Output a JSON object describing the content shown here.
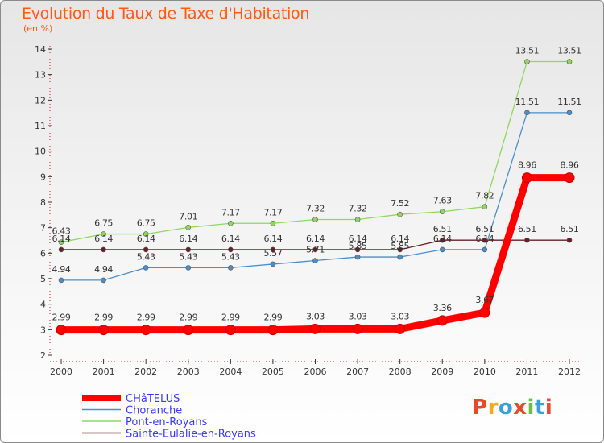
{
  "title": "Evolution du Taux de Taxe d'Habitation",
  "subtitle": "(en %)",
  "logo_text": "Proxiti",
  "chart_data": {
    "type": "line",
    "title": "Evolution du Taux de Taxe d'Habitation",
    "ylabel": "(en %)",
    "xlabel": "",
    "x": [
      "2000",
      "2001",
      "2002",
      "2003",
      "2004",
      "2005",
      "2006",
      "2007",
      "2008",
      "2009",
      "2010",
      "2011",
      "2012"
    ],
    "ylim": [
      2,
      14
    ],
    "yticks": [
      2,
      3,
      4,
      5,
      6,
      7,
      8,
      9,
      10,
      11,
      12,
      13,
      14
    ],
    "grid": false,
    "legend": "bottom-left",
    "series": [
      {
        "name": "Choranche",
        "color": "#4a8fc9",
        "values": [
          4.94,
          4.94,
          5.43,
          5.43,
          5.43,
          5.57,
          5.71,
          5.85,
          5.85,
          6.14,
          6.14,
          11.51,
          11.51
        ],
        "labels": [
          "4.94",
          "4.94",
          "5.43",
          "5.43",
          "5.43",
          "5.57",
          "5.71",
          "5.85",
          "5.85",
          "6.14",
          "6.14",
          "11.51",
          "11.51"
        ]
      },
      {
        "name": "Pont-en-Royans",
        "color": "#8ed85e",
        "values": [
          6.43,
          6.75,
          6.75,
          7.01,
          7.17,
          7.17,
          7.32,
          7.32,
          7.52,
          7.63,
          7.82,
          13.51,
          13.51
        ],
        "labels": [
          "6.43",
          "6.75",
          "6.75",
          "7.01",
          "7.17",
          "7.17",
          "7.32",
          "7.32",
          "7.52",
          "7.63",
          "7.82",
          "13.51",
          "13.51"
        ]
      },
      {
        "name": "Sainte-Eulalie-en-Royans",
        "color": "#6b1e26",
        "values": [
          6.14,
          6.14,
          6.14,
          6.14,
          6.14,
          6.14,
          6.14,
          6.14,
          6.14,
          6.51,
          6.51,
          6.51,
          6.51
        ],
        "labels": [
          "6.14",
          "6.14",
          "6.14",
          "6.14",
          "6.14",
          "6.14",
          "6.14",
          "6.14",
          "6.14",
          "6.51",
          "6.51",
          "6.51",
          "6.51"
        ]
      },
      {
        "name": "CHâTELUS",
        "color": "#ff0000",
        "values": [
          2.99,
          2.99,
          2.99,
          2.99,
          2.99,
          2.99,
          3.03,
          3.03,
          3.03,
          3.36,
          3.67,
          8.96,
          8.96
        ],
        "labels": [
          "2.99",
          "2.99",
          "2.99",
          "2.99",
          "2.99",
          "2.99",
          "3.03",
          "3.03",
          "3.03",
          "3.36",
          "3.67",
          "8.96",
          "8.96"
        ]
      }
    ],
    "legend_order": [
      "CHâTELUS",
      "Choranche",
      "Pont-en-Royans",
      "Sainte-Eulalie-en-Royans"
    ]
  },
  "colors": {
    "title": "#ff5a14",
    "axis": "#333333",
    "legend_text": "#3a3aff",
    "logo": [
      "#e8492a",
      "#f7a823",
      "#3aa0d8",
      "#e8492a",
      "#6cc04a",
      "#3aa0d8",
      "#e8492a"
    ]
  }
}
